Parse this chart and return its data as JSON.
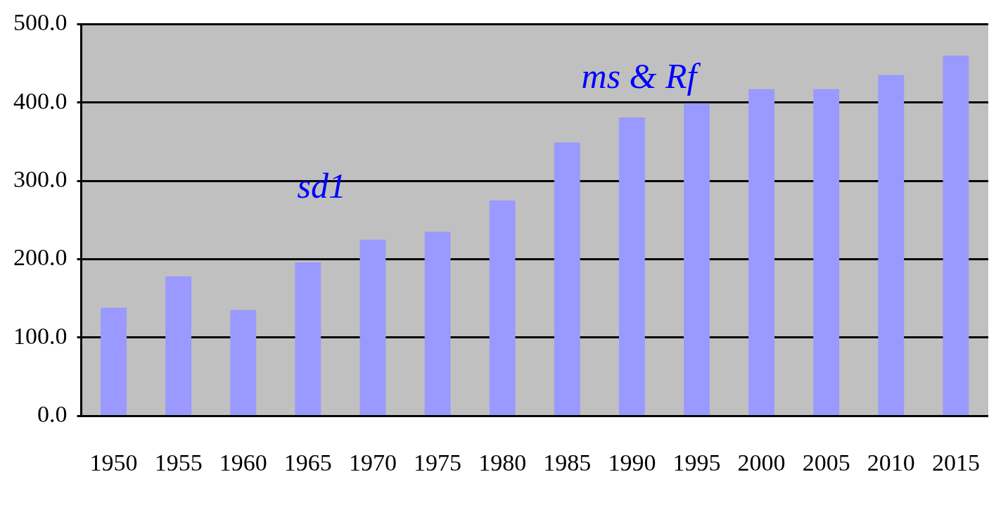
{
  "chart_data": {
    "type": "bar",
    "categories": [
      "1950",
      "1955",
      "1960",
      "1965",
      "1970",
      "1975",
      "1980",
      "1985",
      "1990",
      "1995",
      "2000",
      "2005",
      "2010",
      "2015"
    ],
    "values": [
      138,
      178,
      135,
      196,
      225,
      235,
      275,
      349,
      381,
      399,
      417,
      417,
      435,
      460
    ],
    "color": "#9999ff",
    "ylim": [
      0,
      500
    ],
    "yticks": [
      {
        "value": 0,
        "label": "0.0"
      },
      {
        "value": 100,
        "label": "100.0"
      },
      {
        "value": 200,
        "label": "200.0"
      },
      {
        "value": 300,
        "label": "300.0"
      },
      {
        "value": 400,
        "label": "400.0"
      },
      {
        "value": 500,
        "label": "500.0"
      }
    ],
    "grid": "y",
    "legend": false,
    "annotations": [
      "sd1",
      "ms & Rf"
    ]
  }
}
